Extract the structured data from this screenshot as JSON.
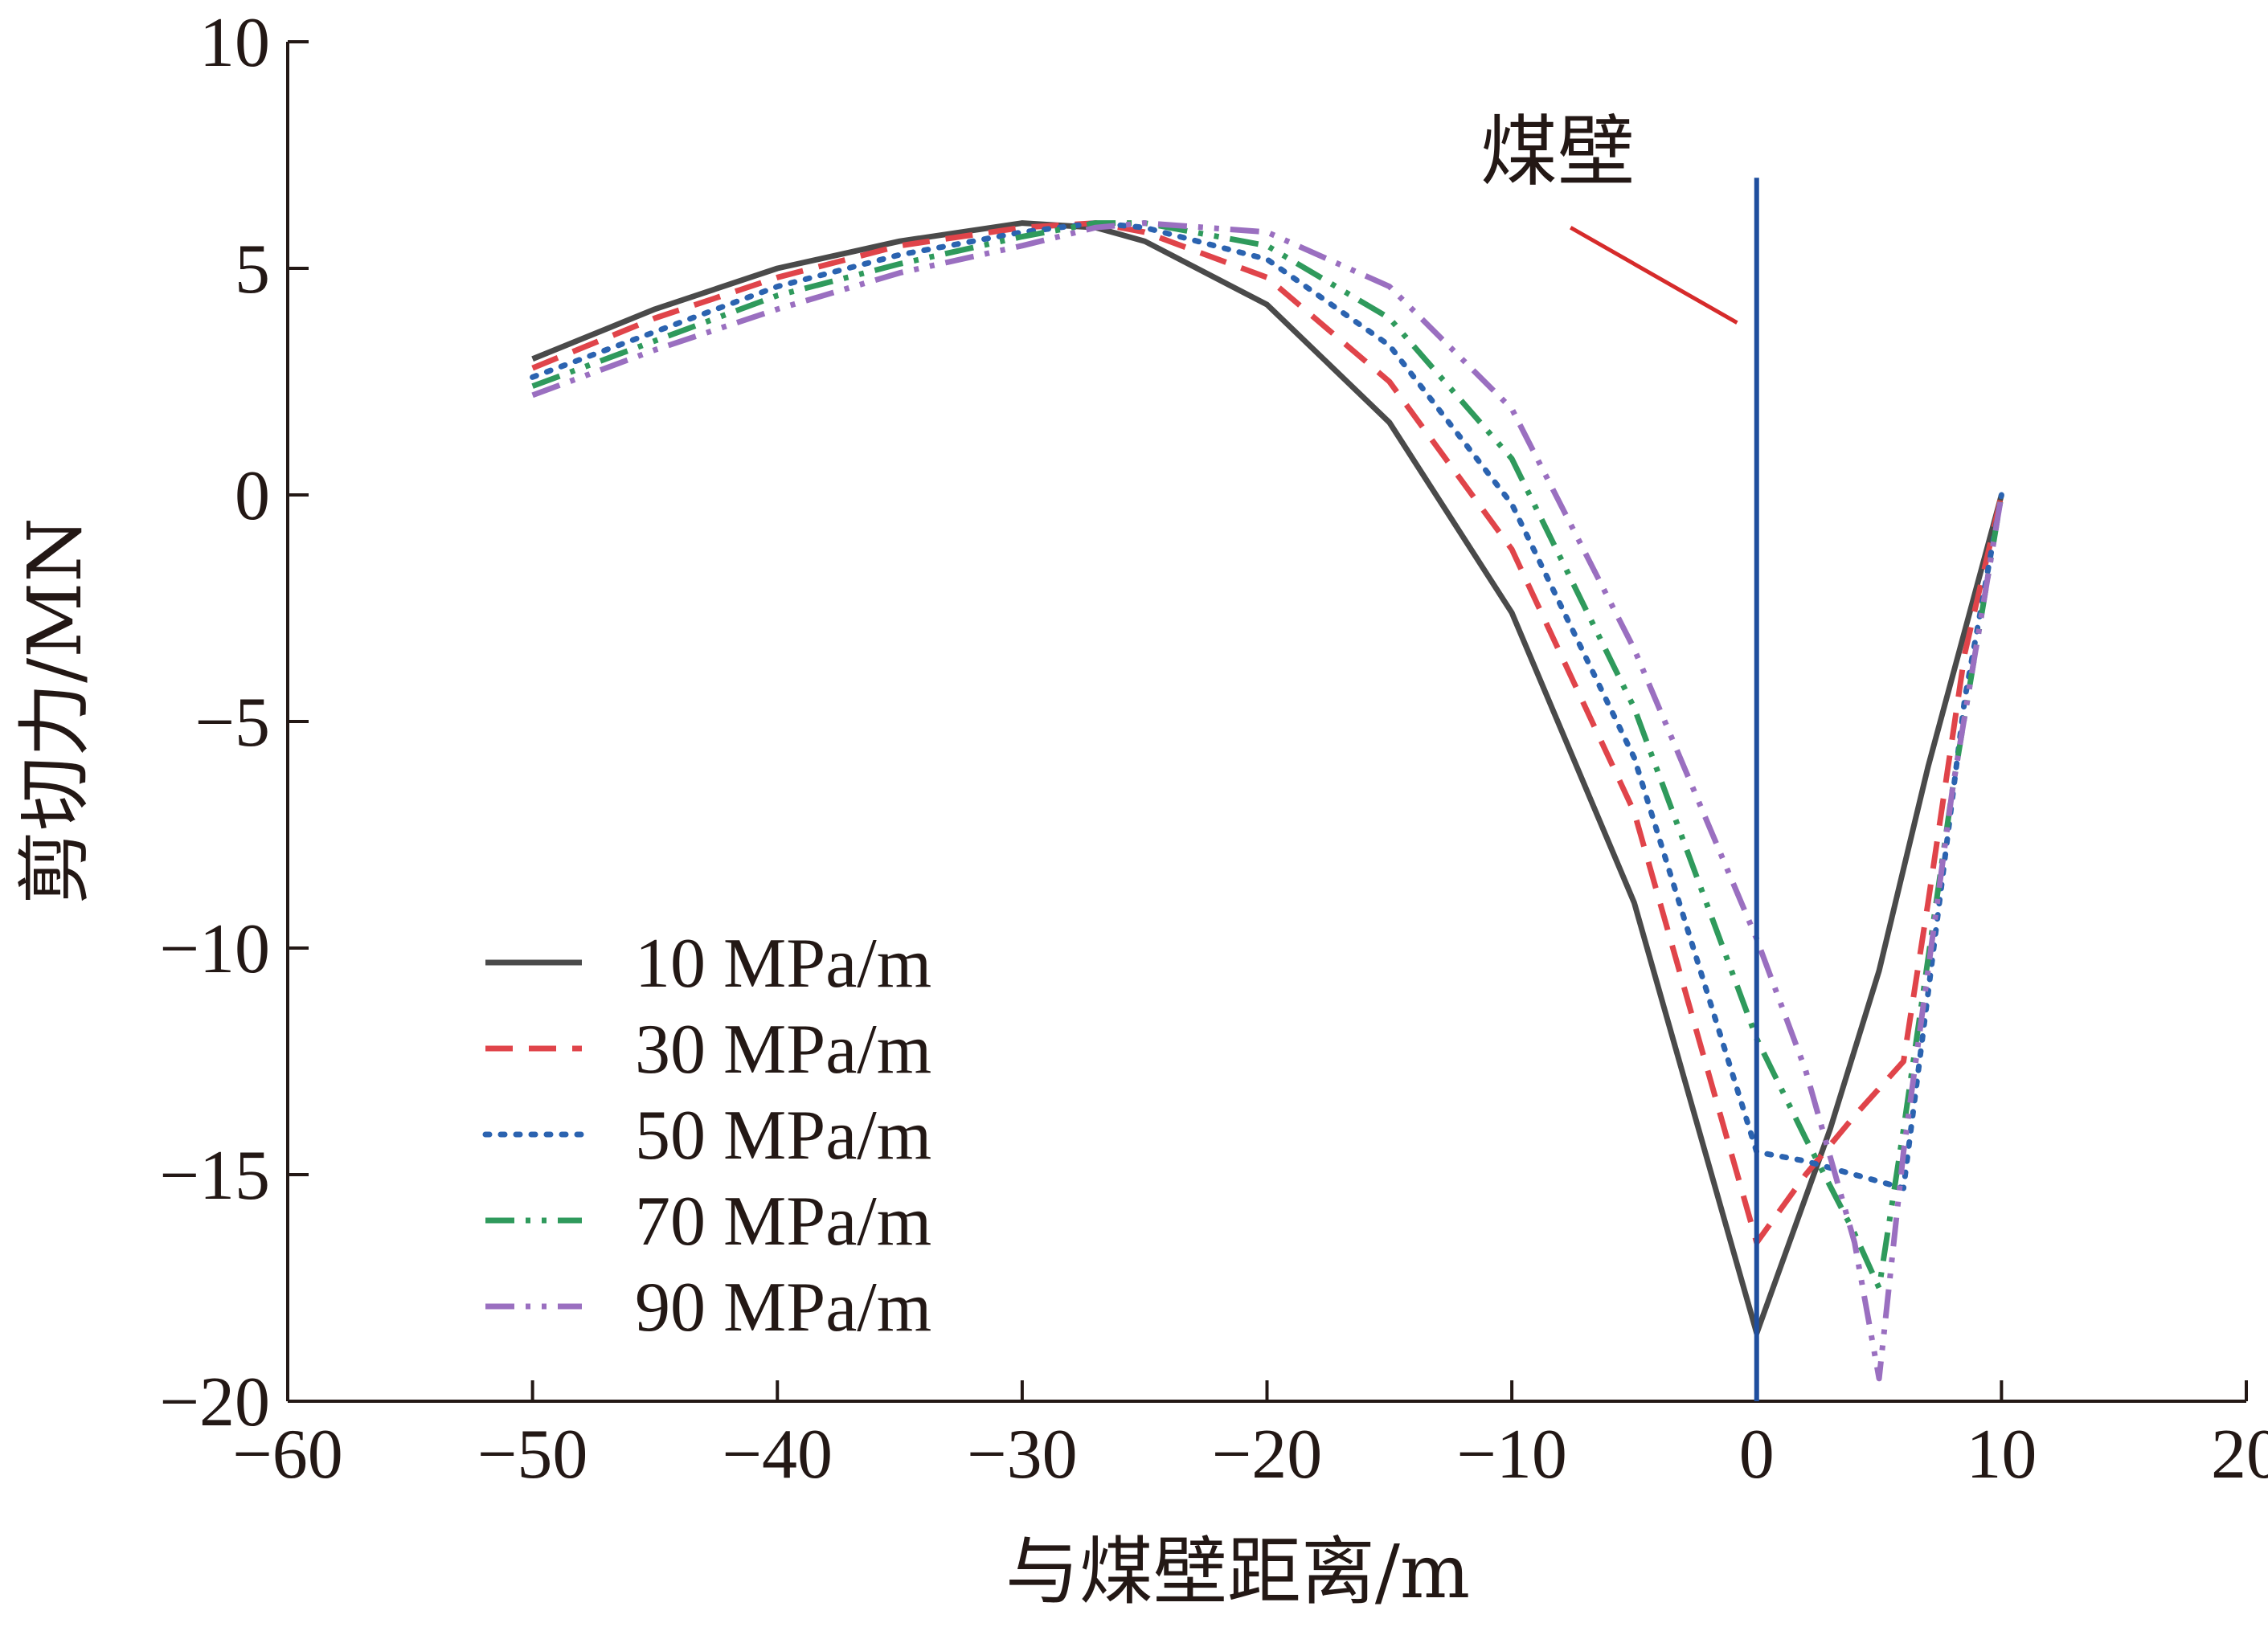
{
  "chart_data": {
    "type": "line",
    "xlabel": "与煤壁距离/m",
    "ylabel": "剪切力/MN",
    "xlim": [
      -60,
      20
    ],
    "ylim": [
      -20,
      10
    ],
    "x_ticks": [
      "−60",
      "−50",
      "−40",
      "−30",
      "−20",
      "−10",
      "0",
      "10",
      "20"
    ],
    "y_ticks": [
      "10",
      "5",
      "0",
      "−5",
      "−10",
      "−15",
      "−20"
    ],
    "grid": false,
    "legend_position": "bottom-left",
    "annotation": {
      "text": "煤壁",
      "wall_x": 0,
      "wall_color": "#1f4e9e",
      "pointer_color": "#d62b2b"
    },
    "series": [
      {
        "name": "10 MPa/m",
        "color": "#4a4a4a",
        "dash": "solid",
        "x": [
          -50,
          -45,
          -40,
          -35,
          -30,
          -27,
          -25,
          -20,
          -15,
          -10,
          -5,
          0,
          3,
          5,
          7,
          10
        ],
        "y": [
          3.0,
          4.1,
          5.0,
          5.6,
          6.0,
          5.9,
          5.6,
          4.2,
          1.6,
          -2.6,
          -9.0,
          -18.5,
          -14.0,
          -10.5,
          -6.0,
          0
        ]
      },
      {
        "name": "30 MPa/m",
        "color": "#e0444a",
        "dash": "dash",
        "x": [
          -50,
          -45,
          -40,
          -35,
          -30,
          -27,
          -25,
          -20,
          -15,
          -10,
          -5,
          0,
          2,
          4,
          6,
          7,
          8.5,
          10
        ],
        "y": [
          2.8,
          3.9,
          4.8,
          5.5,
          5.9,
          6.0,
          5.8,
          4.8,
          2.5,
          -1.2,
          -7.0,
          -16.5,
          -15.0,
          -13.7,
          -12.5,
          -9.0,
          -3.5,
          0
        ]
      },
      {
        "name": "50 MPa/m",
        "color": "#2b63b0",
        "dash": "dot",
        "x": [
          -50,
          -45,
          -40,
          -35,
          -30,
          -27,
          -25,
          -20,
          -15,
          -10,
          -5,
          0,
          2,
          4,
          6,
          7,
          8.5,
          10
        ],
        "y": [
          2.6,
          3.6,
          4.6,
          5.3,
          5.8,
          6.0,
          5.9,
          5.2,
          3.3,
          -0.2,
          -5.8,
          -14.5,
          -14.7,
          -15.0,
          -15.3,
          -11.0,
          -4.5,
          0
        ]
      },
      {
        "name": "70 MPa/m",
        "color": "#2f9a5c",
        "dash": "dashdotdot",
        "x": [
          -50,
          -45,
          -40,
          -35,
          -30,
          -27,
          -25,
          -20,
          -15,
          -10,
          -5,
          0,
          2,
          4,
          5,
          6,
          8,
          10
        ],
        "y": [
          2.4,
          3.4,
          4.4,
          5.1,
          5.7,
          6.0,
          6.0,
          5.5,
          3.9,
          0.8,
          -4.7,
          -12.0,
          -14.2,
          -16.3,
          -17.5,
          -14.0,
          -6.5,
          0
        ]
      },
      {
        "name": "90 MPa/m",
        "color": "#9a6fc0",
        "dash": "dashdotdot",
        "x": [
          -50,
          -45,
          -40,
          -35,
          -30,
          -27,
          -25,
          -20,
          -15,
          -10,
          -5,
          0,
          2,
          4,
          5,
          6,
          8,
          10
        ],
        "y": [
          2.2,
          3.2,
          4.1,
          4.9,
          5.5,
          5.9,
          6.0,
          5.8,
          4.6,
          1.9,
          -3.4,
          -9.8,
          -12.7,
          -16.5,
          -19.5,
          -14.5,
          -6.5,
          0
        ]
      }
    ]
  }
}
